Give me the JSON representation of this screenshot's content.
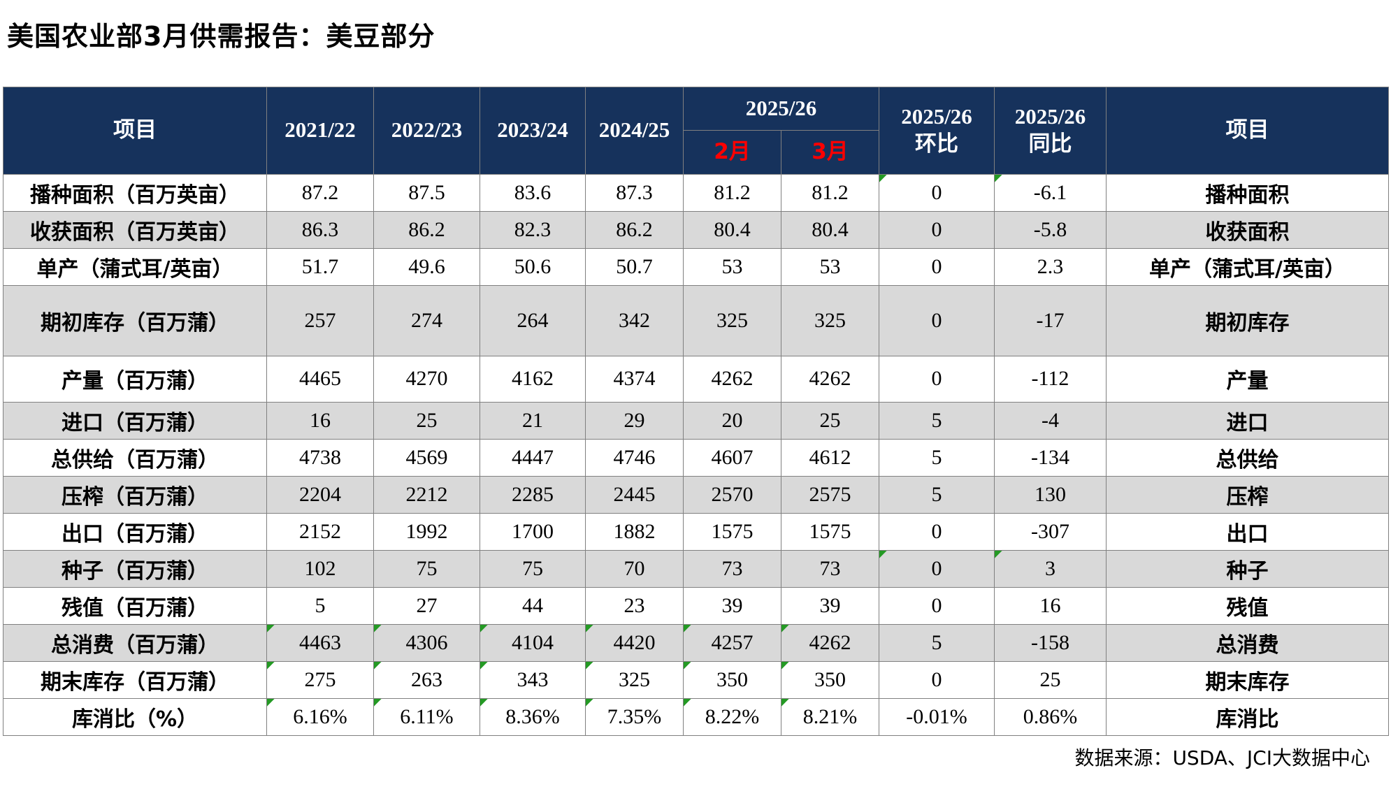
{
  "title": "美国农业部3月供需报告：美豆部分",
  "footer": {
    "source": "数据来源：USDA、JCI大数据中心"
  },
  "colors": {
    "header_bg": "#16325C",
    "header_text": "#FFFFFF",
    "month_red": "#FF0000",
    "stripe_gray": "#D9D9D9",
    "grid_gray": "#808080",
    "flag_triangle_green": "#249A24"
  },
  "table": {
    "headers": {
      "item_left": "项目",
      "years": [
        "2021/22",
        "2022/23",
        "2023/24",
        "2024/25"
      ],
      "group_2526": {
        "label": "2025/26",
        "sub": [
          "2月",
          "3月"
        ]
      },
      "mom": {
        "line1": "2025/26",
        "line2": "环比"
      },
      "yoy": {
        "line1": "2025/26",
        "line2": "同比"
      },
      "item_right": "项目"
    },
    "rows": [
      {
        "item": "播种面积（百万英亩）",
        "values": [
          "87.2",
          "87.5",
          "83.6",
          "87.3",
          "81.2",
          "81.2",
          "0",
          "-6.1"
        ],
        "item_right": "播种面积",
        "stripe": false,
        "size": "normal",
        "triangles": [
          6,
          7
        ]
      },
      {
        "item": "收获面积（百万英亩）",
        "values": [
          "86.3",
          "86.2",
          "82.3",
          "86.2",
          "80.4",
          "80.4",
          "0",
          "-5.8"
        ],
        "item_right": "收获面积",
        "stripe": true,
        "size": "normal",
        "triangles": []
      },
      {
        "item": "单产（蒲式耳/英亩）",
        "values": [
          "51.7",
          "49.6",
          "50.6",
          "50.7",
          "53",
          "53",
          "0",
          "2.3"
        ],
        "item_right": "单产（蒲式耳/英亩）",
        "stripe": false,
        "size": "normal",
        "triangles": []
      },
      {
        "item": "期初库存（百万蒲）",
        "values": [
          "257",
          "274",
          "264",
          "342",
          "325",
          "325",
          "0",
          "-17"
        ],
        "item_right": "期初库存",
        "stripe": true,
        "size": "xtall",
        "triangles": []
      },
      {
        "item": "产量（百万蒲）",
        "values": [
          "4465",
          "4270",
          "4162",
          "4374",
          "4262",
          "4262",
          "0",
          "-112"
        ],
        "item_right": "产量",
        "stripe": false,
        "size": "tall",
        "triangles": []
      },
      {
        "item": "进口（百万蒲）",
        "values": [
          "16",
          "25",
          "21",
          "29",
          "20",
          "25",
          "5",
          "-4"
        ],
        "item_right": "进口",
        "stripe": true,
        "size": "normal",
        "triangles": []
      },
      {
        "item": "总供给（百万蒲）",
        "values": [
          "4738",
          "4569",
          "4447",
          "4746",
          "4607",
          "4612",
          "5",
          "-134"
        ],
        "item_right": "总供给",
        "stripe": false,
        "size": "normal",
        "triangles": []
      },
      {
        "item": "压榨（百万蒲）",
        "values": [
          "2204",
          "2212",
          "2285",
          "2445",
          "2570",
          "2575",
          "5",
          "130"
        ],
        "item_right": "压榨",
        "stripe": true,
        "size": "normal",
        "triangles": []
      },
      {
        "item": "出口（百万蒲）",
        "values": [
          "2152",
          "1992",
          "1700",
          "1882",
          "1575",
          "1575",
          "0",
          "-307"
        ],
        "item_right": "出口",
        "stripe": false,
        "size": "normal",
        "triangles": []
      },
      {
        "item": "种子（百万蒲）",
        "values": [
          "102",
          "75",
          "75",
          "70",
          "73",
          "73",
          "0",
          "3"
        ],
        "item_right": "种子",
        "stripe": true,
        "size": "normal",
        "triangles": [
          6,
          7
        ]
      },
      {
        "item": "残值（百万蒲）",
        "values": [
          "5",
          "27",
          "44",
          "23",
          "39",
          "39",
          "0",
          "16"
        ],
        "item_right": "残值",
        "stripe": false,
        "size": "normal",
        "triangles": []
      },
      {
        "item": "总消费（百万蒲）",
        "values": [
          "4463",
          "4306",
          "4104",
          "4420",
          "4257",
          "4262",
          "5",
          "-158"
        ],
        "item_right": "总消费",
        "stripe": true,
        "size": "normal",
        "triangles": [
          0,
          1,
          2,
          3,
          4,
          5
        ]
      },
      {
        "item": "期末库存（百万蒲）",
        "values": [
          "275",
          "263",
          "343",
          "325",
          "350",
          "350",
          "0",
          "25"
        ],
        "item_right": "期末库存",
        "stripe": false,
        "size": "normal",
        "triangles": [
          0,
          1,
          2,
          3,
          4,
          5
        ]
      },
      {
        "item": "库消比（%）",
        "values": [
          "6.16%",
          "6.11%",
          "8.36%",
          "7.35%",
          "8.22%",
          "8.21%",
          "-0.01%",
          "0.86%"
        ],
        "item_right": "库消比",
        "stripe": false,
        "size": "normal",
        "triangles": [
          0,
          1,
          2,
          3,
          4,
          5
        ]
      }
    ]
  }
}
